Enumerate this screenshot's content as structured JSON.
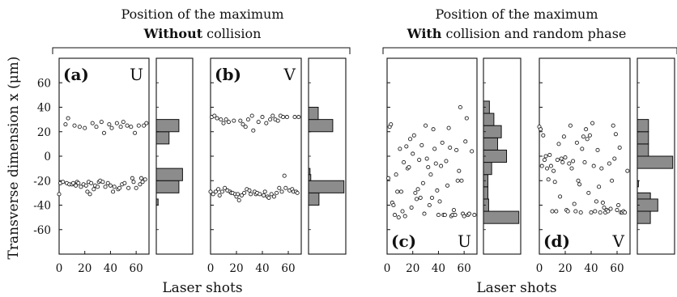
{
  "chart_data": {
    "type": "scatter",
    "ylabel": "Transverse dimension x (μm)",
    "xlabel": "Laser shots",
    "ylim": [
      -80,
      80
    ],
    "yticks": [
      -60,
      -40,
      -20,
      0,
      20,
      40,
      60
    ],
    "xlim": [
      0,
      70
    ],
    "xticks": [
      0,
      20,
      40,
      60
    ],
    "group_titles": [
      {
        "line1": "Position of the maximum",
        "bold": "Without",
        "rest": " collision"
      },
      {
        "line1": "Position of the maximum",
        "bold": "With",
        "rest": " collision and random phase"
      }
    ],
    "panels": [
      {
        "label": "(a)",
        "letter": "U",
        "label_pos": "top",
        "points": [
          [
            0,
            -31
          ],
          [
            1,
            -22
          ],
          [
            3,
            -21
          ],
          [
            5,
            26
          ],
          [
            6,
            -22
          ],
          [
            7,
            31
          ],
          [
            8,
            -23
          ],
          [
            10,
            -23
          ],
          [
            11,
            -22
          ],
          [
            12,
            25
          ],
          [
            13,
            -24
          ],
          [
            14,
            -21
          ],
          [
            15,
            -22
          ],
          [
            16,
            24
          ],
          [
            17,
            -25
          ],
          [
            19,
            -23
          ],
          [
            20,
            23
          ],
          [
            21,
            -24
          ],
          [
            22,
            -29
          ],
          [
            23,
            -21
          ],
          [
            24,
            -31
          ],
          [
            25,
            -22
          ],
          [
            26,
            27
          ],
          [
            27,
            -27
          ],
          [
            28,
            -24
          ],
          [
            29,
            24
          ],
          [
            30,
            -25
          ],
          [
            31,
            -21
          ],
          [
            32,
            -20
          ],
          [
            33,
            28
          ],
          [
            34,
            -21
          ],
          [
            35,
            19
          ],
          [
            36,
            -25
          ],
          [
            38,
            -22
          ],
          [
            39,
            26
          ],
          [
            40,
            -24
          ],
          [
            41,
            23
          ],
          [
            42,
            -29
          ],
          [
            43,
            -25
          ],
          [
            45,
            27
          ],
          [
            46,
            -27
          ],
          [
            47,
            -26
          ],
          [
            48,
            24
          ],
          [
            49,
            -23
          ],
          [
            50,
            28
          ],
          [
            51,
            -22
          ],
          [
            53,
            25
          ],
          [
            54,
            -26
          ],
          [
            56,
            24
          ],
          [
            57,
            -18
          ],
          [
            58,
            -21
          ],
          [
            59,
            19
          ],
          [
            60,
            -26
          ],
          [
            62,
            25
          ],
          [
            63,
            -23
          ],
          [
            64,
            -18
          ],
          [
            65,
            -21
          ],
          [
            66,
            25
          ],
          [
            67,
            -19
          ],
          [
            68,
            27
          ]
        ],
        "hist": [
          {
            "lo": -40,
            "hi": -35,
            "v": 0.05
          },
          {
            "lo": -30,
            "hi": -20,
            "v": 0.62
          },
          {
            "lo": -20,
            "hi": -10,
            "v": 0.72
          },
          {
            "lo": 10,
            "hi": 20,
            "v": 0.35
          },
          {
            "lo": 20,
            "hi": 30,
            "v": 0.62
          }
        ]
      },
      {
        "label": "(b)",
        "letter": "V",
        "label_pos": "top",
        "points": [
          [
            0,
            -29
          ],
          [
            1,
            32
          ],
          [
            2,
            -31
          ],
          [
            3,
            33
          ],
          [
            4,
            -29
          ],
          [
            5,
            31
          ],
          [
            6,
            -27
          ],
          [
            7,
            -32
          ],
          [
            8,
            30
          ],
          [
            9,
            -29
          ],
          [
            10,
            27
          ],
          [
            11,
            -26
          ],
          [
            12,
            30
          ],
          [
            13,
            -28
          ],
          [
            14,
            28
          ],
          [
            15,
            -29
          ],
          [
            16,
            -30
          ],
          [
            17,
            -30
          ],
          [
            18,
            29
          ],
          [
            19,
            -31
          ],
          [
            20,
            -33
          ],
          [
            21,
            -31
          ],
          [
            22,
            -36
          ],
          [
            23,
            29
          ],
          [
            24,
            -32
          ],
          [
            25,
            26
          ],
          [
            26,
            -30
          ],
          [
            27,
            24
          ],
          [
            28,
            -27
          ],
          [
            29,
            30
          ],
          [
            30,
            -28
          ],
          [
            31,
            -31
          ],
          [
            32,
            33
          ],
          [
            33,
            21
          ],
          [
            34,
            -29
          ],
          [
            35,
            -31
          ],
          [
            36,
            -30
          ],
          [
            37,
            28
          ],
          [
            38,
            -31
          ],
          [
            40,
            32
          ],
          [
            41,
            -32
          ],
          [
            42,
            -29
          ],
          [
            43,
            27
          ],
          [
            44,
            -33
          ],
          [
            45,
            -34
          ],
          [
            46,
            30
          ],
          [
            47,
            -31
          ],
          [
            48,
            33
          ],
          [
            49,
            -33
          ],
          [
            50,
            30
          ],
          [
            51,
            -30
          ],
          [
            52,
            29
          ],
          [
            53,
            -26
          ],
          [
            54,
            33
          ],
          [
            55,
            -29
          ],
          [
            56,
            32
          ],
          [
            57,
            -16
          ],
          [
            58,
            -26
          ],
          [
            59,
            32
          ],
          [
            61,
            -28
          ],
          [
            63,
            -27
          ],
          [
            64,
            -29
          ],
          [
            65,
            32
          ],
          [
            66,
            -29
          ],
          [
            67,
            -30
          ],
          [
            68,
            32
          ]
        ],
        "hist": [
          {
            "lo": -40,
            "hi": -30,
            "v": 0.28
          },
          {
            "lo": -30,
            "hi": -20,
            "v": 0.95
          },
          {
            "lo": -20,
            "hi": -15,
            "v": 0.06
          },
          {
            "lo": -15,
            "hi": -10,
            "v": 0.04
          },
          {
            "lo": 20,
            "hi": 25,
            "v": 0.06
          },
          {
            "lo": 20,
            "hi": 30,
            "v": 0.65
          },
          {
            "lo": 30,
            "hi": 40,
            "v": 0.26
          }
        ]
      },
      {
        "label": "(c)",
        "letter": "U",
        "label_pos": "bottom",
        "points": [
          [
            1,
            -18
          ],
          [
            2,
            24
          ],
          [
            3,
            26
          ],
          [
            4,
            -38
          ],
          [
            5,
            -40
          ],
          [
            6,
            -48
          ],
          [
            7,
            -15
          ],
          [
            8,
            -29
          ],
          [
            9,
            -50
          ],
          [
            10,
            6
          ],
          [
            11,
            -29
          ],
          [
            12,
            -45
          ],
          [
            13,
            -5
          ],
          [
            14,
            -49
          ],
          [
            15,
            8
          ],
          [
            16,
            -10
          ],
          [
            17,
            -9
          ],
          [
            18,
            14
          ],
          [
            19,
            -42
          ],
          [
            20,
            2
          ],
          [
            21,
            17
          ],
          [
            22,
            -30
          ],
          [
            23,
            -35
          ],
          [
            24,
            -27
          ],
          [
            25,
            -3
          ],
          [
            26,
            -34
          ],
          [
            27,
            9
          ],
          [
            28,
            -22
          ],
          [
            29,
            -47
          ],
          [
            30,
            25
          ],
          [
            31,
            -2
          ],
          [
            32,
            -9
          ],
          [
            33,
            -40
          ],
          [
            34,
            -15
          ],
          [
            35,
            -34
          ],
          [
            36,
            22
          ],
          [
            37,
            6
          ],
          [
            38,
            -6
          ],
          [
            39,
            -28
          ],
          [
            40,
            -48
          ],
          [
            41,
            -37
          ],
          [
            42,
            -8
          ],
          [
            43,
            11
          ],
          [
            44,
            -48
          ],
          [
            45,
            -48
          ],
          [
            46,
            -4
          ],
          [
            47,
            -24
          ],
          [
            48,
            23
          ],
          [
            49,
            7
          ],
          [
            50,
            -49
          ],
          [
            51,
            -48
          ],
          [
            52,
            -44
          ],
          [
            53,
            -48
          ],
          [
            54,
            5
          ],
          [
            55,
            -20
          ],
          [
            56,
            -12
          ],
          [
            57,
            40
          ],
          [
            58,
            -20
          ],
          [
            59,
            -47
          ],
          [
            60,
            -49
          ],
          [
            61,
            12
          ],
          [
            62,
            31
          ],
          [
            63,
            -48
          ],
          [
            64,
            -47
          ],
          [
            66,
            4
          ],
          [
            68,
            -48
          ]
        ],
        "hist": [
          {
            "lo": -55,
            "hi": -45,
            "v": 0.95
          },
          {
            "lo": -45,
            "hi": -35,
            "v": 0.14
          },
          {
            "lo": -35,
            "hi": -25,
            "v": 0.12
          },
          {
            "lo": -25,
            "hi": -15,
            "v": 0.12
          },
          {
            "lo": -15,
            "hi": -5,
            "v": 0.22
          },
          {
            "lo": -5,
            "hi": 5,
            "v": 0.62
          },
          {
            "lo": 5,
            "hi": 15,
            "v": 0.38
          },
          {
            "lo": 15,
            "hi": 25,
            "v": 0.48
          },
          {
            "lo": 25,
            "hi": 35,
            "v": 0.28
          },
          {
            "lo": 35,
            "hi": 45,
            "v": 0.16
          }
        ]
      },
      {
        "label": "(d)",
        "letter": "V",
        "label_pos": "bottom",
        "points": [
          [
            0,
            24
          ],
          [
            1,
            22
          ],
          [
            2,
            -8
          ],
          [
            3,
            17
          ],
          [
            4,
            -3
          ],
          [
            5,
            0
          ],
          [
            6,
            -10
          ],
          [
            7,
            -19
          ],
          [
            8,
            1
          ],
          [
            9,
            -8
          ],
          [
            10,
            -45
          ],
          [
            11,
            -12
          ],
          [
            12,
            -21
          ],
          [
            13,
            -45
          ],
          [
            14,
            -3
          ],
          [
            15,
            10
          ],
          [
            16,
            -33
          ],
          [
            17,
            -2
          ],
          [
            18,
            -5
          ],
          [
            19,
            16
          ],
          [
            20,
            -1
          ],
          [
            21,
            -44
          ],
          [
            22,
            -45
          ],
          [
            23,
            -6
          ],
          [
            24,
            25
          ],
          [
            25,
            -10
          ],
          [
            26,
            -4
          ],
          [
            27,
            -39
          ],
          [
            28,
            -45
          ],
          [
            29,
            11
          ],
          [
            30,
            -20
          ],
          [
            31,
            -23
          ],
          [
            32,
            -46
          ],
          [
            33,
            6
          ],
          [
            34,
            16
          ],
          [
            35,
            -5
          ],
          [
            36,
            22
          ],
          [
            37,
            14
          ],
          [
            38,
            -30
          ],
          [
            39,
            17
          ],
          [
            40,
            -46
          ],
          [
            41,
            27
          ],
          [
            42,
            -8
          ],
          [
            43,
            -45
          ],
          [
            44,
            -37
          ],
          [
            45,
            5
          ],
          [
            46,
            -25
          ],
          [
            47,
            -46
          ],
          [
            48,
            -10
          ],
          [
            49,
            -38
          ],
          [
            50,
            -42
          ],
          [
            51,
            -46
          ],
          [
            52,
            -44
          ],
          [
            53,
            -45
          ],
          [
            54,
            -6
          ],
          [
            55,
            -43
          ],
          [
            56,
            -20
          ],
          [
            57,
            25
          ],
          [
            58,
            -2
          ],
          [
            59,
            18
          ],
          [
            60,
            -44
          ],
          [
            61,
            -40
          ],
          [
            62,
            7
          ],
          [
            63,
            -46
          ],
          [
            64,
            -46
          ],
          [
            65,
            -45
          ],
          [
            66,
            -46
          ],
          [
            68,
            -12
          ]
        ],
        "hist": [
          {
            "lo": -45,
            "hi": -40,
            "v": 0.35
          },
          {
            "lo": -35,
            "hi": -30,
            "v": 0.35
          },
          {
            "lo": -40,
            "hi": -30,
            "v": 0.35
          },
          {
            "lo": -45,
            "hi": -35,
            "v": 0.55
          },
          {
            "lo": -55,
            "hi": -45,
            "v": 0.35
          },
          {
            "lo": -25,
            "hi": -20,
            "v": 0.03
          },
          {
            "lo": -10,
            "hi": 0,
            "v": 0.95
          },
          {
            "lo": 0,
            "hi": 10,
            "v": 0.3
          },
          {
            "lo": 10,
            "hi": 20,
            "v": 0.3
          },
          {
            "lo": 20,
            "hi": 30,
            "v": 0.3
          }
        ]
      }
    ]
  }
}
